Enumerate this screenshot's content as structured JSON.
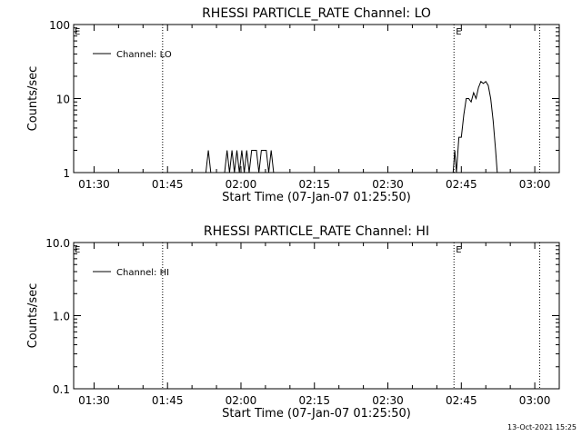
{
  "footer": {
    "timestamp": "13-Oct-2021 15:25"
  },
  "chart_data": [
    {
      "type": "line",
      "title": "RHESSI PARTICLE_RATE Channel: LO",
      "xlabel": "Start Time (07-Jan-07 01:25:50)",
      "ylabel": "Counts/sec",
      "yscale": "log",
      "xlim": [
        "01:25:50",
        "03:05:00"
      ],
      "ylim": [
        1,
        100
      ],
      "x_ticks": [
        "01:30",
        "01:45",
        "02:00",
        "02:15",
        "02:30",
        "02:45",
        "03:00"
      ],
      "y_ticks": [
        "1",
        "10",
        "100"
      ],
      "legend": {
        "placement": "top-left",
        "entries": [
          "Channel: LO"
        ]
      },
      "grid": false,
      "markers": [
        {
          "time": "01:44:00",
          "style": "dotted",
          "label": ""
        },
        {
          "time": "02:43:30",
          "style": "dotted",
          "label": "E"
        },
        {
          "time": "03:01:00",
          "style": "dotted",
          "label": ""
        }
      ],
      "corner_label": "E",
      "series": [
        {
          "name": "Channel: LO",
          "x": [
            "01:52:50",
            "01:53:20",
            "01:53:50",
            "01:56:40",
            "01:57:10",
            "01:57:40",
            "01:58:10",
            "01:58:40",
            "01:59:10",
            "01:59:40",
            "02:00:10",
            "02:00:40",
            "02:01:10",
            "02:01:40",
            "02:02:10",
            "02:02:40",
            "02:03:10",
            "02:03:40",
            "02:04:10",
            "02:04:40",
            "02:05:10",
            "02:05:40",
            "02:06:10",
            "02:06:40",
            "02:43:20",
            "02:43:40",
            "02:44:00",
            "02:44:30",
            "02:45:00",
            "02:45:30",
            "02:46:00",
            "02:46:30",
            "02:47:00",
            "02:47:30",
            "02:48:00",
            "02:48:30",
            "02:49:00",
            "02:49:30",
            "02:50:00",
            "02:50:30",
            "02:51:00",
            "02:51:30",
            "02:52:00",
            "02:52:20"
          ],
          "y": [
            1,
            2,
            1,
            1,
            2,
            1,
            2,
            1,
            2,
            1,
            2,
            1,
            2,
            1,
            2,
            2,
            2,
            1,
            2,
            2,
            2,
            1,
            2,
            1,
            1,
            2,
            1,
            3,
            3,
            6,
            10,
            10,
            9,
            12,
            10,
            14,
            17,
            16,
            17,
            15,
            10,
            5,
            2,
            1
          ]
        }
      ]
    },
    {
      "type": "line",
      "title": "RHESSI PARTICLE_RATE Channel: HI",
      "xlabel": "Start Time (07-Jan-07 01:25:50)",
      "ylabel": "Counts/sec",
      "yscale": "log",
      "xlim": [
        "01:25:50",
        "03:05:00"
      ],
      "ylim": [
        0.1,
        10
      ],
      "x_ticks": [
        "01:30",
        "01:45",
        "02:00",
        "02:15",
        "02:30",
        "02:45",
        "03:00"
      ],
      "y_ticks": [
        "0.1",
        "1.0",
        "10.0"
      ],
      "legend": {
        "placement": "top-left",
        "entries": [
          "Channel: HI"
        ]
      },
      "grid": false,
      "markers": [
        {
          "time": "01:44:00",
          "style": "dotted",
          "label": ""
        },
        {
          "time": "02:43:30",
          "style": "dotted",
          "label": "E"
        },
        {
          "time": "03:01:00",
          "style": "dotted",
          "label": ""
        }
      ],
      "corner_label": "E",
      "series": [
        {
          "name": "Channel: HI",
          "x": [],
          "y": []
        }
      ]
    }
  ]
}
